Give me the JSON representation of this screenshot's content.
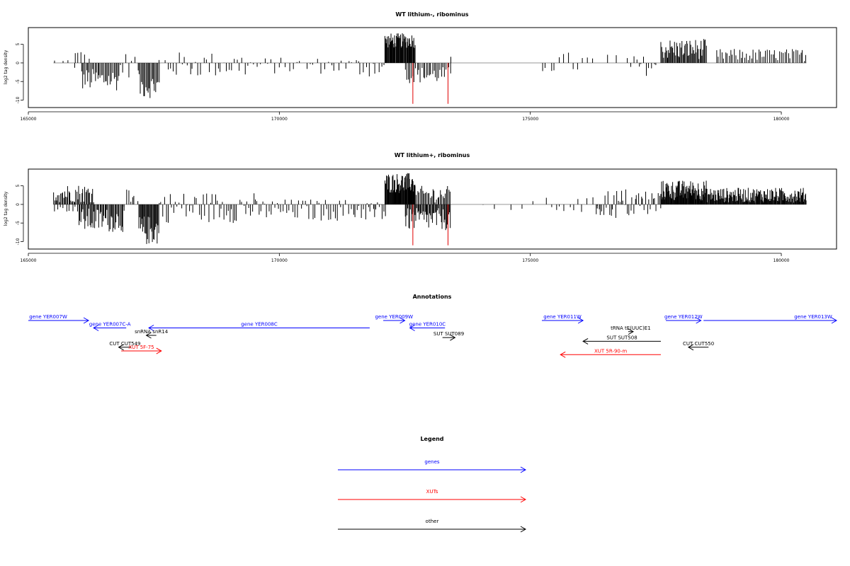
{
  "chart_data": [
    {
      "type": "bar",
      "title": "WT lithium-, ribominus",
      "ylabel": "log2 tag density",
      "xlabel": "",
      "xlim": [
        165000,
        181100
      ],
      "ylim": [
        -12,
        9.5
      ],
      "x_ticks": [
        165000,
        170000,
        175000,
        180000
      ],
      "x_tick_labels": [
        "165000",
        "170000",
        "175000",
        "180000"
      ],
      "y_ticks": [
        5,
        0,
        -5,
        -10
      ],
      "y_tick_labels": [
        "5",
        "0",
        "-5",
        "-10"
      ],
      "highlights": [
        {
          "x": 172660,
          "y": -11,
          "color": "#e00000"
        },
        {
          "x": 173360,
          "y": -11,
          "color": "#e00000"
        }
      ],
      "clusters": [
        {
          "from": 165500,
          "to": 165900,
          "step": 120,
          "ymin": -2,
          "ymax": 2,
          "sign": "mixed"
        },
        {
          "from": 165900,
          "to": 166200,
          "step": 70,
          "ymin": 0.5,
          "ymax": 3.5,
          "sign": "pos"
        },
        {
          "from": 166050,
          "to": 166800,
          "step": 25,
          "ymin": -7.5,
          "ymax": -1.5,
          "sign": "neg"
        },
        {
          "from": 166800,
          "to": 167200,
          "step": 60,
          "ymin": -4,
          "ymax": 3,
          "sign": "mixed"
        },
        {
          "from": 167200,
          "to": 167600,
          "step": 22,
          "ymin": -9.5,
          "ymax": -3,
          "sign": "neg"
        },
        {
          "from": 167600,
          "to": 169400,
          "step": 55,
          "ymin": -4,
          "ymax": 3,
          "sign": "mixed"
        },
        {
          "from": 169400,
          "to": 171600,
          "step": 70,
          "ymin": -3,
          "ymax": 1.5,
          "sign": "mixed"
        },
        {
          "from": 171600,
          "to": 172100,
          "step": 60,
          "ymin": -4,
          "ymax": 2,
          "sign": "mixed"
        },
        {
          "from": 172100,
          "to": 172700,
          "step": 12,
          "ymin": 4,
          "ymax": 8,
          "sign": "pos"
        },
        {
          "from": 172500,
          "to": 173400,
          "step": 30,
          "ymin": -5.5,
          "ymax": -1,
          "sign": "neg"
        },
        {
          "from": 173400,
          "to": 173450,
          "step": 60,
          "ymin": 1.5,
          "ymax": 2,
          "sign": "pos"
        },
        {
          "from": 175200,
          "to": 176200,
          "step": 90,
          "ymin": -3,
          "ymax": 3,
          "sign": "mixed"
        },
        {
          "from": 176500,
          "to": 177000,
          "step": 200,
          "ymin": -2,
          "ymax": 3.5,
          "sign": "mixed"
        },
        {
          "from": 177000,
          "to": 177500,
          "step": 50,
          "ymin": -3.5,
          "ymax": 2,
          "sign": "mixed"
        },
        {
          "from": 177600,
          "to": 178500,
          "step": 18,
          "ymin": 1,
          "ymax": 6.5,
          "sign": "pos"
        },
        {
          "from": 178700,
          "to": 180500,
          "step": 35,
          "ymin": 0.5,
          "ymax": 3.8,
          "sign": "pos"
        }
      ]
    },
    {
      "type": "bar",
      "title": "WT lithium+, ribominus",
      "ylabel": "log2 tag density",
      "xlabel": "",
      "xlim": [
        165000,
        181100
      ],
      "ylim": [
        -12,
        9.5
      ],
      "x_ticks": [
        165000,
        170000,
        175000,
        180000
      ],
      "x_tick_labels": [
        "165000",
        "170000",
        "175000",
        "180000"
      ],
      "y_ticks": [
        5,
        0,
        -5,
        -10
      ],
      "y_tick_labels": [
        "5",
        "0",
        "-5",
        "-10"
      ],
      "highlights": [
        {
          "x": 172660,
          "y": -11,
          "color": "#e00000"
        },
        {
          "x": 173360,
          "y": -11,
          "color": "#e00000"
        }
      ],
      "clusters": [
        {
          "from": 165500,
          "to": 166300,
          "step": 20,
          "ymin": 0.5,
          "ymax": 5.5,
          "sign": "pos"
        },
        {
          "from": 165500,
          "to": 166000,
          "step": 60,
          "ymin": -2,
          "ymax": -0.5,
          "sign": "neg"
        },
        {
          "from": 166000,
          "to": 166900,
          "step": 20,
          "ymin": -7.5,
          "ymax": -1,
          "sign": "neg"
        },
        {
          "from": 166900,
          "to": 167200,
          "step": 40,
          "ymin": -4,
          "ymax": 4,
          "sign": "mixed"
        },
        {
          "from": 167200,
          "to": 167600,
          "step": 15,
          "ymin": -11,
          "ymax": -3,
          "sign": "neg"
        },
        {
          "from": 167600,
          "to": 169500,
          "step": 35,
          "ymin": -5,
          "ymax": 3.5,
          "sign": "mixed"
        },
        {
          "from": 169500,
          "to": 171800,
          "step": 40,
          "ymin": -4.5,
          "ymax": 1.5,
          "sign": "mixed"
        },
        {
          "from": 171800,
          "to": 172100,
          "step": 30,
          "ymin": -5,
          "ymax": 1,
          "sign": "mixed"
        },
        {
          "from": 172100,
          "to": 172700,
          "step": 10,
          "ymin": 3,
          "ymax": 8.5,
          "sign": "pos"
        },
        {
          "from": 172500,
          "to": 173400,
          "step": 18,
          "ymin": -7,
          "ymax": -1,
          "sign": "neg"
        },
        {
          "from": 172700,
          "to": 173400,
          "step": 25,
          "ymin": 0.5,
          "ymax": 5,
          "sign": "pos"
        },
        {
          "from": 174000,
          "to": 175000,
          "step": 250,
          "ymin": -2,
          "ymax": 1,
          "sign": "mixed"
        },
        {
          "from": 175300,
          "to": 176300,
          "step": 90,
          "ymin": -2.5,
          "ymax": 2,
          "sign": "mixed"
        },
        {
          "from": 176300,
          "to": 177600,
          "step": 30,
          "ymin": -4,
          "ymax": 4.5,
          "sign": "mixed"
        },
        {
          "from": 177600,
          "to": 178500,
          "step": 10,
          "ymin": 1,
          "ymax": 6.5,
          "sign": "pos"
        },
        {
          "from": 178500,
          "to": 180500,
          "step": 12,
          "ymin": 0.5,
          "ymax": 4.5,
          "sign": "pos"
        }
      ]
    }
  ],
  "annotations": {
    "title": "Annotations",
    "xlim": [
      165000,
      181100
    ],
    "features": [
      {
        "label": "gene YER007W",
        "type": "genes",
        "color": "#0000ff",
        "start": 165000,
        "end": 166200,
        "strand": "+",
        "row": 0
      },
      {
        "label": "gene YER007C-A",
        "type": "genes",
        "color": "#0000ff",
        "start": 166300,
        "end": 166950,
        "strand": "-",
        "row": 1
      },
      {
        "label": "gene YER008C",
        "type": "genes",
        "color": "#0000ff",
        "start": 167400,
        "end": 171800,
        "strand": "-",
        "row": 1
      },
      {
        "label": "gene YER009W",
        "type": "genes",
        "color": "#0000ff",
        "start": 172070,
        "end": 172500,
        "strand": "+",
        "row": 0
      },
      {
        "label": "gene YER010C",
        "type": "genes",
        "color": "#0000ff",
        "start": 172600,
        "end": 173300,
        "strand": "-",
        "row": 1
      },
      {
        "label": "gene YER011W",
        "type": "genes",
        "color": "#0000ff",
        "start": 175230,
        "end": 176050,
        "strand": "+",
        "row": 0
      },
      {
        "label": "gene YER012W",
        "type": "genes",
        "color": "#0000ff",
        "start": 177700,
        "end": 178400,
        "strand": "+",
        "row": 0
      },
      {
        "label": "gene YER013W",
        "type": "genes",
        "color": "#0000ff",
        "start": 178450,
        "end": 181100,
        "strand": "+",
        "row": 0
      },
      {
        "label": "snRNA snR14",
        "type": "other",
        "color": "#000000",
        "start": 167350,
        "end": 167550,
        "strand": "-",
        "row": 2
      },
      {
        "label": "tRNA tE(UUC)E1",
        "type": "other",
        "color": "#000000",
        "start": 176950,
        "end": 177050,
        "strand": "+",
        "row": 1.5
      },
      {
        "label": "SUT SUT089",
        "type": "other",
        "color": "#000000",
        "start": 173250,
        "end": 173500,
        "strand": "+",
        "row": 2.3
      },
      {
        "label": "SUT SUT508",
        "type": "other",
        "color": "#000000",
        "start": 176050,
        "end": 177600,
        "strand": "-",
        "row": 2.8
      },
      {
        "label": "CUT CUT549",
        "type": "other",
        "color": "#000000",
        "start": 166800,
        "end": 167050,
        "strand": "-",
        "row": 3.6
      },
      {
        "label": "CUT CUT550",
        "type": "other",
        "color": "#000000",
        "start": 178150,
        "end": 178550,
        "strand": "-",
        "row": 3.6
      },
      {
        "label": "XUT 5F-75",
        "type": "XUTs",
        "color": "#ff0000",
        "start": 166850,
        "end": 167650,
        "strand": "+",
        "row": 4.1
      },
      {
        "label": "XUT 5R-90-m",
        "type": "XUTs",
        "color": "#ff0000",
        "start": 175600,
        "end": 177600,
        "strand": "-",
        "row": 4.6
      }
    ]
  },
  "legend": {
    "title": "Legend",
    "items": [
      {
        "label": "genes",
        "color": "#0000ff"
      },
      {
        "label": "XUTs",
        "color": "#ff0000"
      },
      {
        "label": "other",
        "color": "#000000"
      }
    ]
  }
}
